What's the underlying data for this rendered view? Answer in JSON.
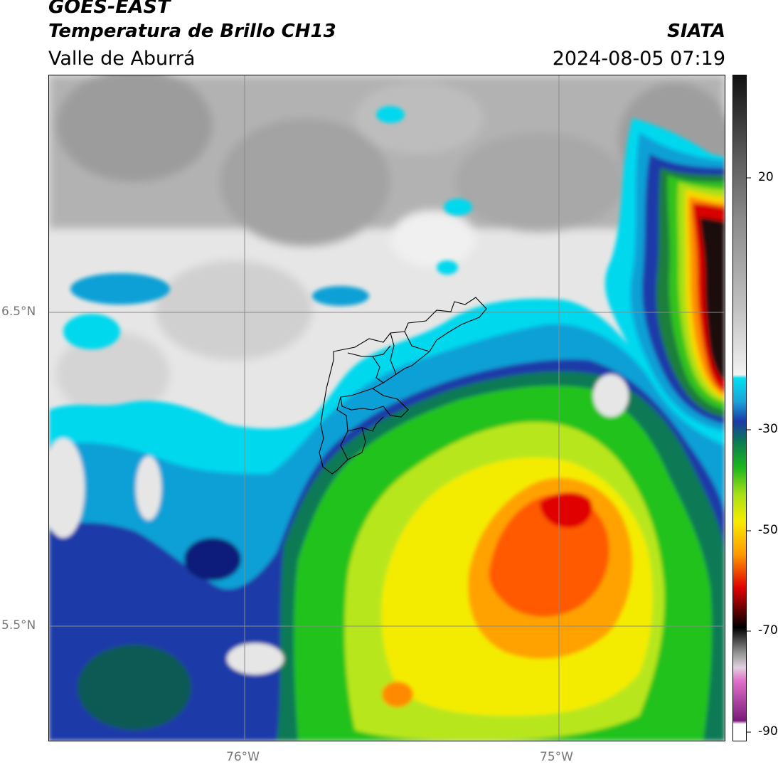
{
  "header": {
    "satellite": "GOES-EAST",
    "product": "Temperatura de Brillo CH13",
    "region": "Valle de Aburrá",
    "agency": "SIATA",
    "datetime": "2024-08-05 07:19"
  },
  "map": {
    "lat_labels": [
      "6.5°N",
      "5.5°N"
    ],
    "lon_labels": [
      "76°W",
      "75°W"
    ],
    "lat_range": [
      5.12,
      7.25
    ],
    "lon_range": [
      -76.62,
      -74.45
    ],
    "colormap_note": "brightness temperature in °C",
    "gridlines": true
  },
  "colorbar": {
    "range": [
      -92,
      33
    ],
    "ticks": [
      20,
      -30,
      -50,
      -70,
      -90
    ],
    "tick_labels": [
      "20",
      "-30",
      "-50",
      "-70",
      "-90"
    ]
  },
  "colors": {
    "frame": "#000000",
    "axis_label": "#777777",
    "grid": "#8a8a8a",
    "boundary": "#000000"
  }
}
